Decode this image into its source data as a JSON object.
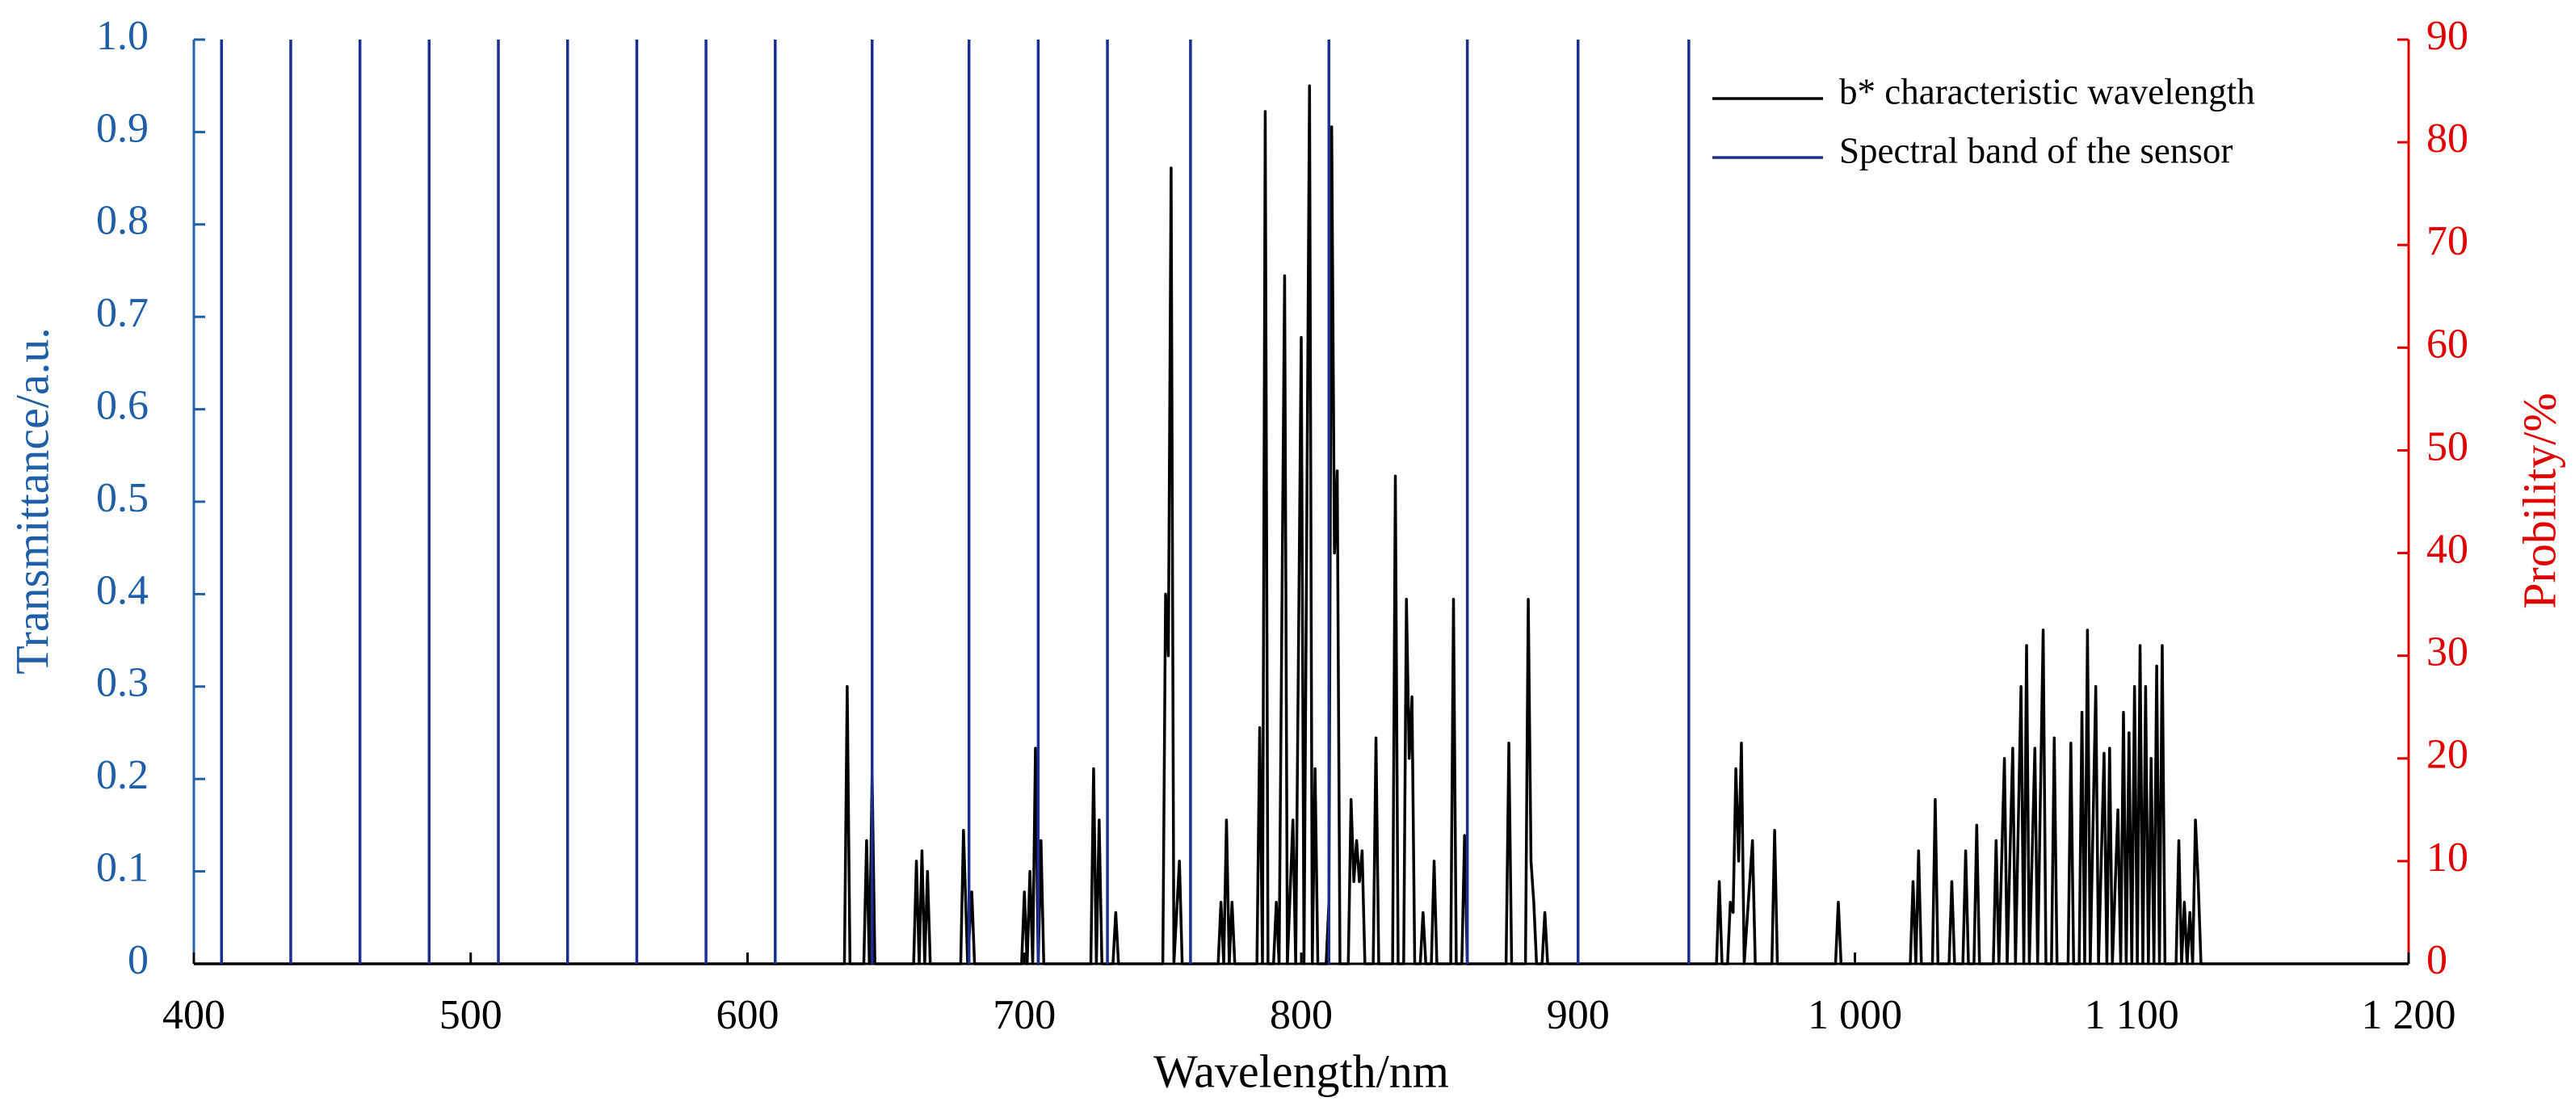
{
  "chart_data": {
    "type": "line",
    "xlabel": "Wavelength/nm",
    "ylabel": "Transmittance/a.u.",
    "y2label": "Probility/%",
    "xlim": [
      400,
      1200
    ],
    "xticks": [
      400,
      500,
      600,
      700,
      800,
      900,
      {
        "value": 1000,
        "label": "1 000"
      },
      {
        "value": 1100,
        "label": "1 100"
      },
      {
        "value": 1200,
        "label": "1 200"
      }
    ],
    "ylim": [
      0,
      1
    ],
    "yticks": [
      0,
      0.1,
      0.2,
      0.3,
      0.4,
      0.5,
      0.6,
      0.7,
      0.8,
      0.9,
      {
        "value": 1,
        "label": "1.0"
      }
    ],
    "y2lim": [
      0,
      90
    ],
    "y2ticks": [
      0,
      10,
      20,
      30,
      40,
      50,
      60,
      70,
      80,
      90
    ],
    "ycolor": "#1f5fa8",
    "y2color": "#e00000",
    "legend": "upper right",
    "series": [
      {
        "name": "b* characteristic wavelength",
        "color": "#000000",
        "axis": "y2",
        "x": [
          400,
          635,
          636,
          637,
          642,
          643,
          644,
          645,
          646,
          660,
          661,
          662,
          663,
          664,
          665,
          666,
          677,
          678,
          679.5,
          681,
          682,
          699,
          700,
          701,
          702,
          703,
          704,
          705,
          706,
          707,
          724,
          725,
          726,
          727,
          728,
          732,
          733,
          734,
          750,
          751,
          752,
          753,
          754,
          756,
          757,
          770,
          771,
          772,
          773,
          774,
          775,
          776,
          784,
          785,
          786,
          787,
          788,
          790,
          791,
          792,
          794,
          795,
          797,
          798,
          800,
          801,
          803,
          804,
          805,
          806,
          809,
          810,
          811,
          812,
          813,
          814,
          817,
          818,
          819,
          820,
          821,
          822,
          823,
          826,
          827,
          828,
          833,
          834,
          835,
          837,
          838,
          839,
          840,
          841,
          843,
          844,
          845,
          847,
          848,
          849,
          854,
          855,
          856,
          858,
          859,
          860,
          874,
          875,
          876,
          881,
          882,
          883,
          884,
          885,
          887,
          888,
          889,
          950,
          951,
          952,
          954,
          955,
          956,
          957,
          958,
          959,
          960,
          963,
          964,
          970,
          971,
          972,
          993,
          994,
          995,
          1020,
          1021,
          1022,
          1023,
          1024,
          1028,
          1029,
          1030,
          1034,
          1035,
          1036,
          1039,
          1040,
          1041,
          1043,
          1044,
          1045,
          1050,
          1051,
          1052,
          1054,
          1055,
          1057,
          1058,
          1060,
          1061,
          1062,
          1063,
          1065,
          1066,
          1068,
          1069,
          1071,
          1072,
          1073,
          1077,
          1078,
          1079,
          1081,
          1082,
          1083,
          1084,
          1085,
          1087,
          1088,
          1090,
          1091,
          1092,
          1093,
          1095,
          1096,
          1097,
          1098,
          1099,
          1100,
          1101,
          1102,
          1103,
          1104,
          1105,
          1106,
          1107,
          1108,
          1109,
          1110,
          1111,
          1112,
          1116,
          1117,
          1118,
          1119,
          1120,
          1121,
          1122,
          1123,
          1124,
          1125,
          1200
        ],
        "values": [
          0,
          0,
          27,
          0,
          0,
          12,
          0,
          18.5,
          0,
          0,
          10,
          0,
          11,
          0,
          9,
          0,
          0,
          13,
          0,
          7,
          0,
          0,
          7,
          0,
          9,
          0,
          21,
          0,
          12,
          0,
          0,
          19,
          0,
          14,
          0,
          0,
          5,
          0,
          0,
          36,
          30,
          77.5,
          0,
          10,
          0,
          0,
          6,
          0,
          14,
          0,
          6,
          0,
          0,
          23,
          0,
          83,
          0,
          0,
          6,
          0,
          67,
          0,
          14,
          0,
          61,
          0,
          85.5,
          0,
          19,
          0,
          0,
          6,
          81.5,
          40,
          48,
          0,
          0,
          16,
          8,
          12,
          8,
          11,
          0,
          0,
          22,
          0,
          0,
          47.5,
          0,
          0,
          35.5,
          20,
          26,
          0,
          0,
          5,
          0,
          0,
          10,
          0,
          0,
          35.5,
          0,
          0,
          12.5,
          0,
          0,
          21.5,
          0,
          0,
          35.5,
          10,
          6,
          0,
          0,
          5,
          0,
          0,
          8,
          0,
          0,
          6,
          5,
          19,
          10,
          21.5,
          0,
          12,
          0,
          0,
          13,
          0,
          0,
          6,
          0,
          0,
          8,
          0,
          11,
          0,
          0,
          16,
          0,
          0,
          8,
          0,
          0,
          11,
          0,
          0,
          13.5,
          0,
          0,
          12,
          0,
          20,
          0,
          21,
          0,
          27,
          0,
          31,
          0,
          21,
          0,
          32.5,
          0,
          0,
          22,
          0,
          0,
          21.5,
          0,
          0,
          24.5,
          0,
          32.5,
          0,
          27,
          0,
          20.5,
          0,
          21,
          0,
          15,
          0,
          24.5,
          0,
          22.5,
          0,
          27,
          0,
          31,
          0,
          27,
          0,
          20,
          0,
          29,
          0,
          31,
          0,
          0,
          12,
          0,
          6,
          0,
          5,
          0,
          14,
          8,
          0,
          0
        ]
      },
      {
        "name": "Spectral band of the sensor",
        "color": "#1a2f8f",
        "style": "vline",
        "x": [
          410,
          435,
          460,
          485,
          510,
          535,
          560,
          585,
          610,
          645,
          680,
          705,
          730,
          760,
          810,
          860,
          900,
          940
        ],
        "values": [
          1,
          1,
          1,
          1,
          1,
          1,
          1,
          1,
          1,
          1,
          1,
          1,
          1,
          1,
          1,
          1,
          1,
          1
        ]
      }
    ]
  }
}
